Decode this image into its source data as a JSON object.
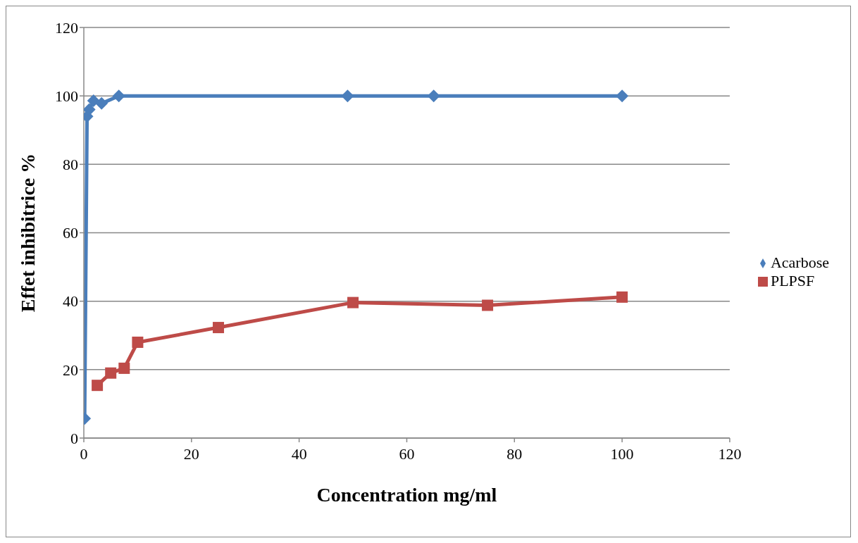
{
  "chart_data": {
    "type": "line",
    "xlabel": "Concentration mg/ml",
    "ylabel": "Effet inhibitrice %",
    "xlim": [
      0,
      120
    ],
    "xticks": [
      0,
      20,
      40,
      60,
      80,
      100,
      120
    ],
    "ylim": [
      0,
      120
    ],
    "yticks": [
      0,
      20,
      40,
      60,
      80,
      100,
      120
    ],
    "grid": "y",
    "legend": "right",
    "series": [
      {
        "name": "Acarbose",
        "color": "#4a7ebb",
        "marker": "diamond",
        "x": [
          0.15,
          0.6,
          1,
          1.8,
          3.3,
          6.5,
          49,
          65,
          100
        ],
        "values": [
          5.7,
          94,
          96,
          98.6,
          97.8,
          100,
          100,
          100,
          100
        ]
      },
      {
        "name": "PLPSF",
        "color": "#be4b48",
        "marker": "square",
        "x": [
          2.5,
          5,
          7.5,
          10,
          25,
          50,
          75,
          100
        ],
        "values": [
          15.4,
          19,
          20.4,
          28,
          32.3,
          39.6,
          38.8,
          41.2
        ]
      }
    ]
  }
}
